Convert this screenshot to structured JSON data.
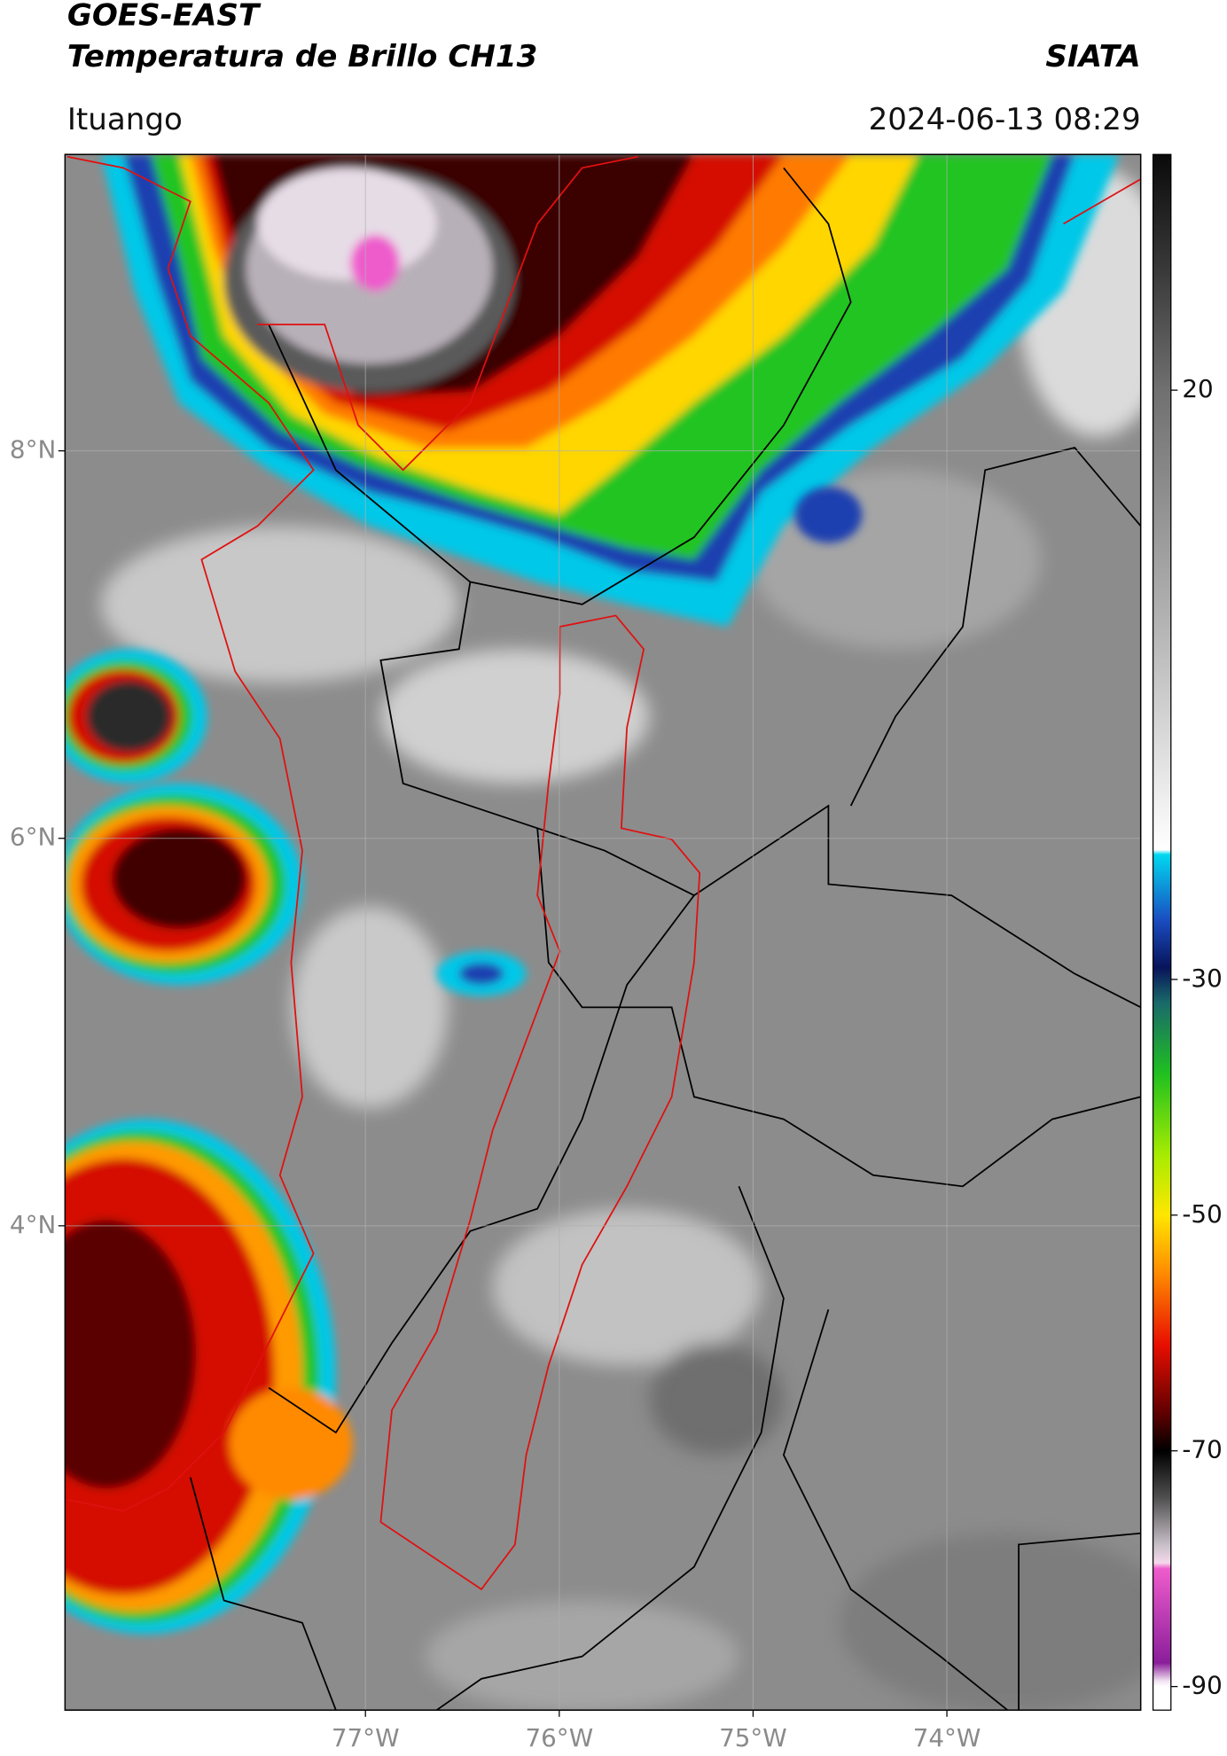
{
  "header": {
    "title_line1": "GOES-EAST",
    "title_line2": "Temperatura de Brillo CH13",
    "org": "SIATA",
    "location": "Ituango",
    "datetime": "2024-06-13 08:29"
  },
  "map": {
    "xlim": [
      -78.55,
      -73.0
    ],
    "ylim": [
      1.5,
      9.53
    ],
    "xticks": [
      {
        "value": -77,
        "label": "77°W"
      },
      {
        "value": -76,
        "label": "76°W"
      },
      {
        "value": -75,
        "label": "75°W"
      },
      {
        "value": -74,
        "label": "74°W"
      }
    ],
    "yticks": [
      {
        "value": 8,
        "label": "8°N"
      },
      {
        "value": 6,
        "label": "6°N"
      },
      {
        "value": 4,
        "label": "4°N"
      }
    ],
    "grid": true
  },
  "colorbar": {
    "lim": [
      -92,
      40
    ],
    "ticks": [
      20,
      -30,
      -50,
      -70,
      -90
    ],
    "stops": [
      [
        40,
        "#0a0a0a"
      ],
      [
        30,
        "#3a3a3a"
      ],
      [
        20,
        "#707070"
      ],
      [
        0,
        "#b4b4b4"
      ],
      [
        -19,
        "#ffffff"
      ],
      [
        -19.4,
        "#00d8f0"
      ],
      [
        -25,
        "#1a4cc0"
      ],
      [
        -29,
        "#08145a"
      ],
      [
        -32,
        "#1a6a6a"
      ],
      [
        -38,
        "#20c020"
      ],
      [
        -45,
        "#a8ec00"
      ],
      [
        -50,
        "#ffe600"
      ],
      [
        -55,
        "#ff8a00"
      ],
      [
        -61,
        "#e80e00"
      ],
      [
        -67,
        "#5a0000"
      ],
      [
        -70,
        "#000000"
      ],
      [
        -74,
        "#505050"
      ],
      [
        -78,
        "#c8c0c8"
      ],
      [
        -79.5,
        "#f4d8ec"
      ],
      [
        -80,
        "#ee5ccc"
      ],
      [
        -88,
        "#8a1e9a"
      ],
      [
        -89.5,
        "#f0e0f0"
      ],
      [
        -90,
        "#ffffff"
      ]
    ]
  }
}
